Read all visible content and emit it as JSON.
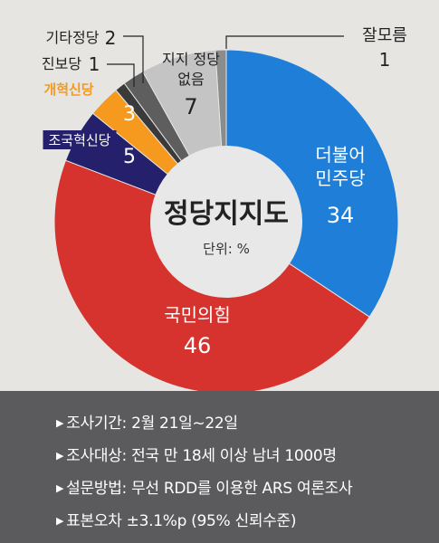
{
  "chart_data": {
    "type": "pie",
    "title": "정당지지도",
    "unit_label": "단위: %",
    "slices": [
      {
        "label": "더불어 민주당",
        "label_lines": [
          "더불어",
          "민주당"
        ],
        "value": 34,
        "value_text": "34",
        "color": "#1f7fd8"
      },
      {
        "label": "국민의힘",
        "label_lines": [
          "국민의힘"
        ],
        "value": 46,
        "value_text": "46",
        "color": "#d6322e"
      },
      {
        "label": "조국혁신당",
        "label_lines": [
          "조국혁신당"
        ],
        "value": 5,
        "value_text": "5",
        "color": "#24206b"
      },
      {
        "label": "개혁신당",
        "label_lines": [
          "개혁신당"
        ],
        "value": 3,
        "value_text": "3",
        "color": "#f59a1f"
      },
      {
        "label": "진보당",
        "label_lines": [
          "진보당"
        ],
        "value": 1,
        "value_text": "1",
        "color": "#3a3a3a"
      },
      {
        "label": "기타정당",
        "label_lines": [
          "기타정당"
        ],
        "value": 2,
        "value_text": "2",
        "color": "#5e5e5e"
      },
      {
        "label": "지지 정당 없음",
        "label_lines": [
          "지지 정당",
          "없음"
        ],
        "value": 7,
        "value_text": "7",
        "color": "#c4c4c4"
      },
      {
        "label": "잘모름",
        "label_lines": [
          "잘모름"
        ],
        "value": 1,
        "value_text": "1",
        "color": "#8c8c8c"
      }
    ]
  },
  "survey_info": [
    {
      "label": "조사기간",
      "value": "2월 21일~22일"
    },
    {
      "label": "조사대상",
      "value": "전국 만 18세 이상 남녀 1000명"
    },
    {
      "label": "설문방법",
      "value": "무선 RDD를 이용한 ARS 여론조사"
    },
    {
      "label": "표본오차",
      "value": "±3.1%p (95% 신뢰수준)"
    }
  ]
}
